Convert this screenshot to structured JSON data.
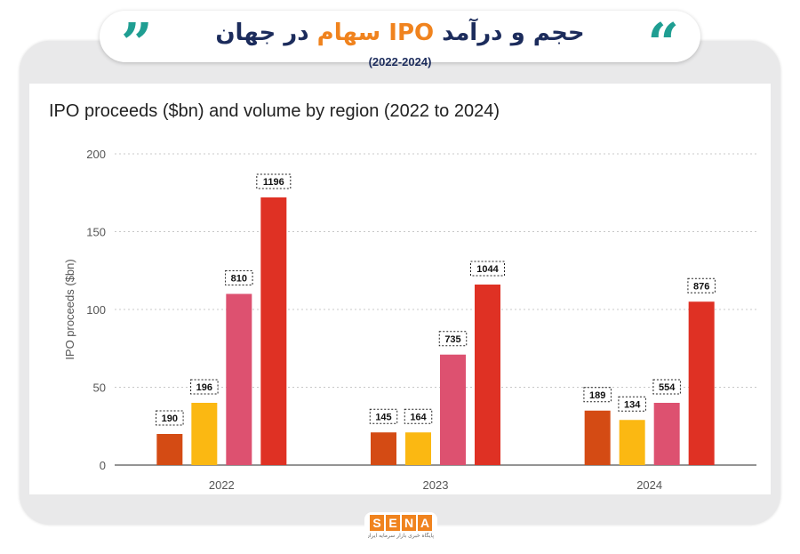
{
  "header": {
    "title_part1": "حجم و درآمد",
    "title_part2": "IPO",
    "title_part3": "سهام",
    "title_part4": "در جهان",
    "subtitle": "(2022-2024)",
    "open_quote": "“",
    "close_quote": "”",
    "colors": {
      "dark": "#1c2c5c",
      "accent": "#f0831e",
      "quote": "#1f9e92"
    }
  },
  "chart_data": {
    "type": "bar",
    "title": "IPO proceeds ($bn) and volume by region (2022 to 2024)",
    "ylabel": "IPO proceeds ($bn)",
    "xlabel": "",
    "ylim": [
      0,
      200
    ],
    "yticks": [
      0,
      50,
      100,
      150,
      200
    ],
    "grid": true,
    "categories": [
      "2022",
      "2023",
      "2024"
    ],
    "series": [
      {
        "color": "#d44b14",
        "values": [
          20,
          21,
          35
        ],
        "labels": [
          "190",
          "145",
          "189"
        ]
      },
      {
        "color": "#fbb812",
        "values": [
          40,
          21,
          29
        ],
        "labels": [
          "196",
          "164",
          "134"
        ]
      },
      {
        "color": "#dd5170",
        "values": [
          110,
          71,
          40
        ],
        "labels": [
          "810",
          "735",
          "554"
        ]
      },
      {
        "color": "#df3124",
        "values": [
          172,
          116,
          105
        ],
        "labels": [
          "1196",
          "1044",
          "876"
        ]
      }
    ]
  },
  "logo": {
    "letters": [
      "S",
      "E",
      "N",
      "A"
    ],
    "tagline": "پایگاه خبری بازار سرمایه ایران"
  }
}
